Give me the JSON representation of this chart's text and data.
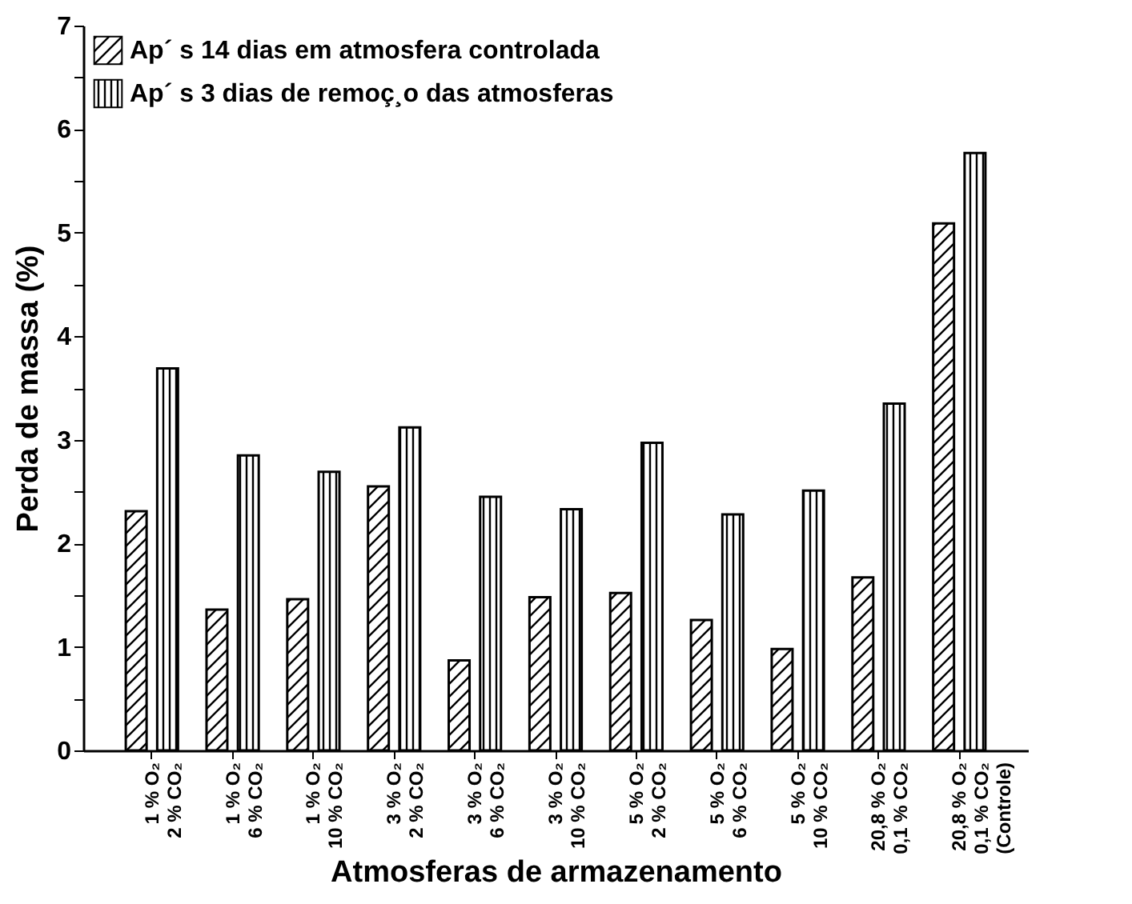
{
  "chart_data": {
    "type": "bar",
    "xlabel": "Atmosferas de armazenamento",
    "ylabel": "Perda de massa (%)",
    "categories": [
      "1 % O₂\n2 % CO₂",
      "1 % O₂\n6 % CO₂",
      "1 % O₂\n10 % CO₂",
      "3 % O₂\n2 % CO₂",
      "3 % O₂\n6 % CO₂",
      "3 % O₂\n10 % CO₂",
      "5 % O₂\n2 % CO₂",
      "5 % O₂\n6 % CO₂",
      "5 % O₂\n10 % CO₂",
      "20,8 % O₂\n0,1 % CO₂",
      "20,8 % O₂\n0,1 % CO₂\n(Controle)"
    ],
    "series": [
      {
        "name": "Ap´ s 14 dias em atmosfera controlada",
        "color": "#000000",
        "values": [
          2.31,
          1.36,
          1.46,
          2.55,
          0.87,
          1.48,
          1.52,
          1.26,
          0.98,
          1.67,
          5.09
        ]
      },
      {
        "name": "Ap´ s 3 dias de remoç¸o das atmosferas",
        "color": "#000000",
        "values": [
          3.69,
          2.85,
          2.69,
          3.12,
          2.45,
          2.33,
          2.97,
          2.28,
          2.51,
          3.35,
          5.77
        ]
      }
    ],
    "ylim": [
      0,
      7
    ],
    "yticks": [
      0,
      {
        "value": 0.5,
        "label": null
      },
      1,
      {
        "value": 1.5,
        "label": null
      },
      2,
      {
        "value": 2.5,
        "label": null
      },
      3,
      {
        "value": 3.5,
        "label": null
      },
      4,
      {
        "value": 4.5,
        "label": null
      },
      5,
      {
        "value": 5.5,
        "label": null
      },
      6,
      {
        "value": 6.5,
        "label": null
      },
      7
    ],
    "grid": false,
    "legend": "top left"
  }
}
